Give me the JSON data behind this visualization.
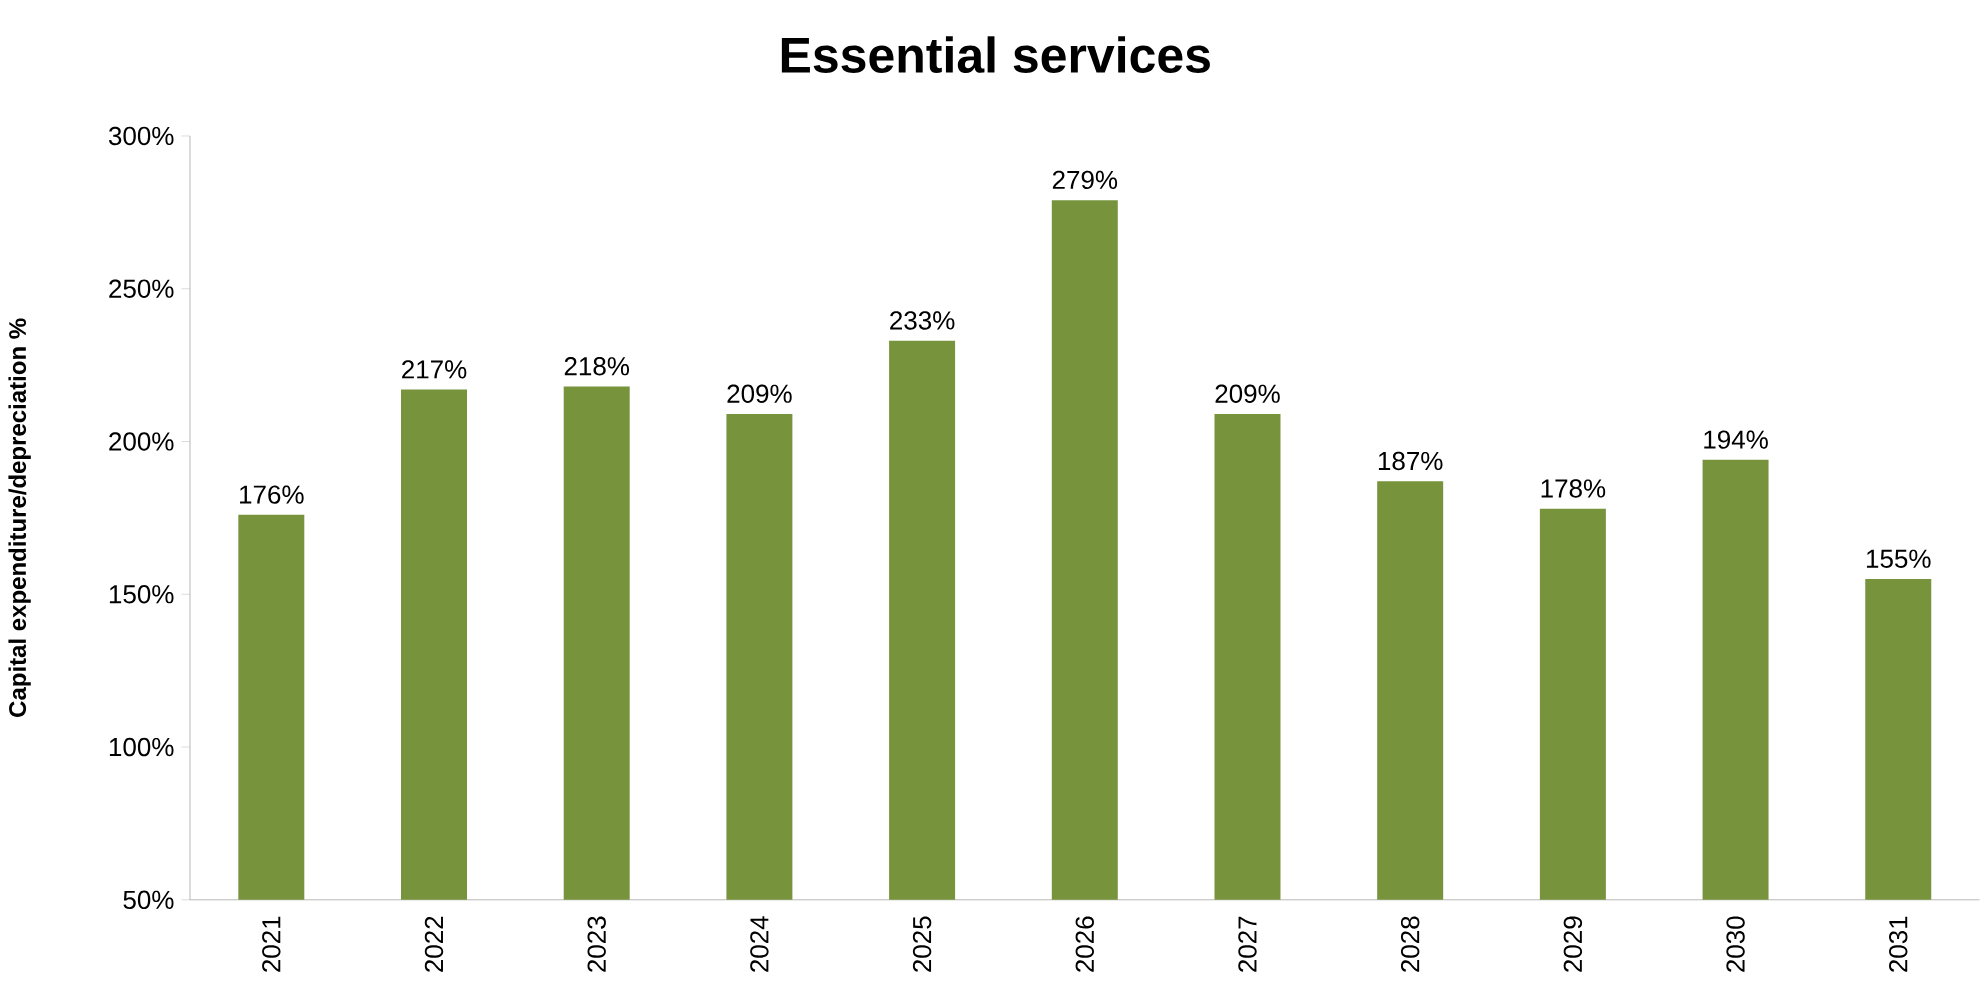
{
  "chart_data": {
    "type": "bar",
    "title": "Essential services",
    "ylabel": "Capital expenditure/depreciation %",
    "categories": [
      "2021",
      "2022",
      "2023",
      "2024",
      "2025",
      "2026",
      "2027",
      "2028",
      "2029",
      "2030",
      "2031"
    ],
    "values": [
      176,
      217,
      218,
      209,
      233,
      279,
      209,
      187,
      178,
      194,
      155
    ],
    "value_labels": [
      "176%",
      "217%",
      "218%",
      "209%",
      "233%",
      "279%",
      "209%",
      "187%",
      "178%",
      "194%",
      "155%"
    ],
    "color": "#77933c",
    "ylim": [
      50,
      300
    ],
    "yticks": [
      {
        "value": 50,
        "label": "50%"
      },
      {
        "value": 100,
        "label": "100%"
      },
      {
        "value": 150,
        "label": "150%"
      },
      {
        "value": 200,
        "label": "200%"
      },
      {
        "value": 250,
        "label": "250%"
      },
      {
        "value": 300,
        "label": "300%"
      }
    ],
    "grid": false
  }
}
